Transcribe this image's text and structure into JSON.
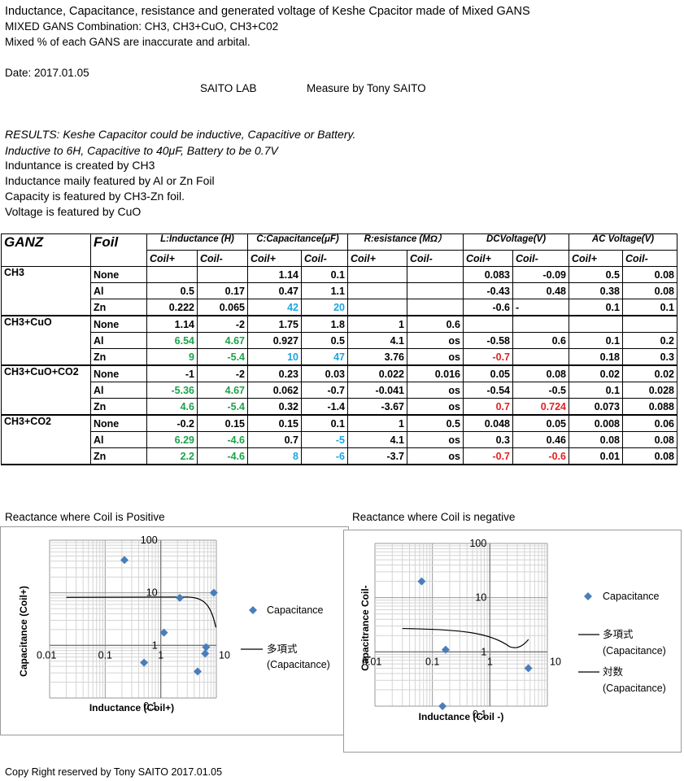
{
  "header": {
    "title": "Inductance, Capacitance, resistance and generated voltage of Keshe Cpacitor made of Mixed GANS",
    "combination": "MIXED GANS Combination: CH3, CH3+CuO, CH3+C02",
    "mixed_note": "Mixed % of each GANS are inaccurate and arbital.",
    "date": "Date: 2017.01.05",
    "lab": "SAITO LAB",
    "measured_by": "Measure by Tony SAITO"
  },
  "results": {
    "line1": "RESULTS:  Keshe Capacitor could be inductive, Capacitive or Battery.",
    "line2": "Inductive to 6H, Capacitive to 40μF, Battery to be 0.7V",
    "line3": "Induntance is created by CH3",
    "line4": "Inductance maily featured by Al or Zn  Foil",
    "line5": "Capacity is featured by CH3-Zn foil.",
    "line6": "Voltage is featured by CuO"
  },
  "table": {
    "col_ganz": "GANZ",
    "col_foil": "Foil",
    "groups": {
      "inductance": "L:Inductance (H)",
      "capacitance": "C:Capacitance(μF)",
      "resistance": "R:esistance (MΩ）",
      "dcvoltage": "DCVoltage(V)",
      "acvoltage": "AC Voltage(V)"
    },
    "sub_pos": "Coil+",
    "sub_neg": "Coil-",
    "groups_rows": [
      {
        "ganz": "CH3",
        "rows": [
          {
            "foil": "None",
            "v": [
              "",
              "",
              "1.14",
              "0.1",
              "",
              "",
              "0.083",
              "-0.09",
              "0.5",
              "0.08"
            ]
          },
          {
            "foil": "Al",
            "v": [
              "0.5",
              "0.17",
              "0.47",
              "1.1",
              "",
              "",
              "-0.43",
              "0.48",
              "0.38",
              "0.08"
            ]
          },
          {
            "foil": "Zn",
            "v": [
              "0.222",
              "0.065",
              "42",
              "20",
              "",
              "",
              "-0.6",
              "-",
              "0.1",
              "0.1"
            ]
          }
        ]
      },
      {
        "ganz": "CH3+CuO",
        "rows": [
          {
            "foil": "None",
            "v": [
              "1.14",
              "-2",
              "1.75",
              "1.8",
              "1",
              "0.6",
              "",
              "",
              "",
              ""
            ]
          },
          {
            "foil": "Al",
            "v": [
              "6.54",
              "4.67",
              "0.927",
              "0.5",
              "4.1",
              "os",
              "-0.58",
              "0.6",
              "0.1",
              "0.2"
            ]
          },
          {
            "foil": "Zn",
            "v": [
              "9",
              "-5.4",
              "10",
              "47",
              "3.76",
              "os",
              "-0.7",
              "",
              "0.18",
              "0.3"
            ]
          }
        ]
      },
      {
        "ganz": "CH3+CuO+CO2",
        "rows": [
          {
            "foil": "None",
            "v": [
              "-1",
              "-2",
              "0.23",
              "0.03",
              "0.022",
              "0.016",
              "0.05",
              "0.08",
              "0.02",
              "0.02"
            ]
          },
          {
            "foil": "Al",
            "v": [
              "-5.36",
              "4.67",
              "0.062",
              "-0.7",
              "-0.041",
              "os",
              "-0.54",
              "-0.5",
              "0.1",
              "0.028"
            ]
          },
          {
            "foil": "Zn",
            "v": [
              "4.6",
              "-5.4",
              "0.32",
              "-1.4",
              "-3.67",
              "os",
              "0.7",
              "0.724",
              "0.073",
              "0.088"
            ]
          }
        ]
      },
      {
        "ganz": "CH3+CO2",
        "rows": [
          {
            "foil": "None",
            "v": [
              "-0.2",
              "0.15",
              "0.15",
              "0.1",
              "1",
              "0.5",
              "0.048",
              "0.05",
              "0.008",
              "0.06"
            ]
          },
          {
            "foil": "Al",
            "v": [
              "6.29",
              "-4.6",
              "0.7",
              "-5",
              "4.1",
              "os",
              "0.3",
              "0.46",
              "0.08",
              "0.08"
            ]
          },
          {
            "foil": "Zn",
            "v": [
              "2.2",
              "-4.6",
              "8",
              "-6",
              "-3.7",
              "os",
              "-0.7",
              "-0.6",
              "0.01",
              "0.08"
            ]
          }
        ]
      }
    ],
    "colors": {
      "green": "#1aa34a",
      "blue": "#1aa6e0",
      "red": "#e52020"
    }
  },
  "chart_data": [
    {
      "type": "scatter",
      "title": "Reactance where Coil is Positive",
      "xlabel": "Inductance (Coil+)",
      "ylabel": "Capacitance (Coil+)",
      "x_scale": "log",
      "y_scale": "log",
      "xlim": [
        0.01,
        10
      ],
      "ylim": [
        0.1,
        100
      ],
      "x_tick_labels": [
        "0.01",
        "0.1",
        "1",
        "10"
      ],
      "y_tick_labels": [
        "100",
        "10",
        "1",
        "0.1"
      ],
      "grid": true,
      "legend_position": "right",
      "series": [
        {
          "name": "Capacitance",
          "marker": "diamond",
          "color": "#4a7ebb",
          "points": [
            [
              0.222,
              42
            ],
            [
              0.5,
              0.47
            ],
            [
              1.14,
              1.75
            ],
            [
              2.2,
              8
            ],
            [
              4.6,
              0.32
            ],
            [
              6.29,
              0.7
            ],
            [
              6.54,
              0.927
            ],
            [
              9,
              10
            ]
          ]
        },
        {
          "name": "多項式 (Capacitance)",
          "type": "trendline-polynomial",
          "color": "#000000"
        }
      ]
    },
    {
      "type": "scatter",
      "title": "Reactance where Coil is negative",
      "xlabel": "Inductance (Coil -)",
      "ylabel": "Capacitrance Coil-",
      "x_scale": "log",
      "y_scale": "log",
      "xlim": [
        0.01,
        10
      ],
      "ylim": [
        0.1,
        100
      ],
      "x_tick_labels": [
        "0.01",
        "0.1",
        "1",
        "10"
      ],
      "y_tick_labels": [
        "100",
        "10",
        "1",
        "0.1"
      ],
      "grid": true,
      "legend_position": "right",
      "series": [
        {
          "name": "Capacitance",
          "marker": "diamond",
          "color": "#4a7ebb",
          "points": [
            [
              0.065,
              20
            ],
            [
              0.15,
              0.1
            ],
            [
              0.17,
              1.1
            ],
            [
              4.67,
              0.5
            ]
          ]
        },
        {
          "name": "多項式 (Capacitance)",
          "type": "trendline-polynomial",
          "color": "#000000"
        },
        {
          "name": "対数 (Capacitance)",
          "type": "trendline-log",
          "color": "#000000"
        }
      ]
    }
  ],
  "footer": {
    "copyright": "Copy Right reserved by Tony SAITO  2017.01.05"
  }
}
